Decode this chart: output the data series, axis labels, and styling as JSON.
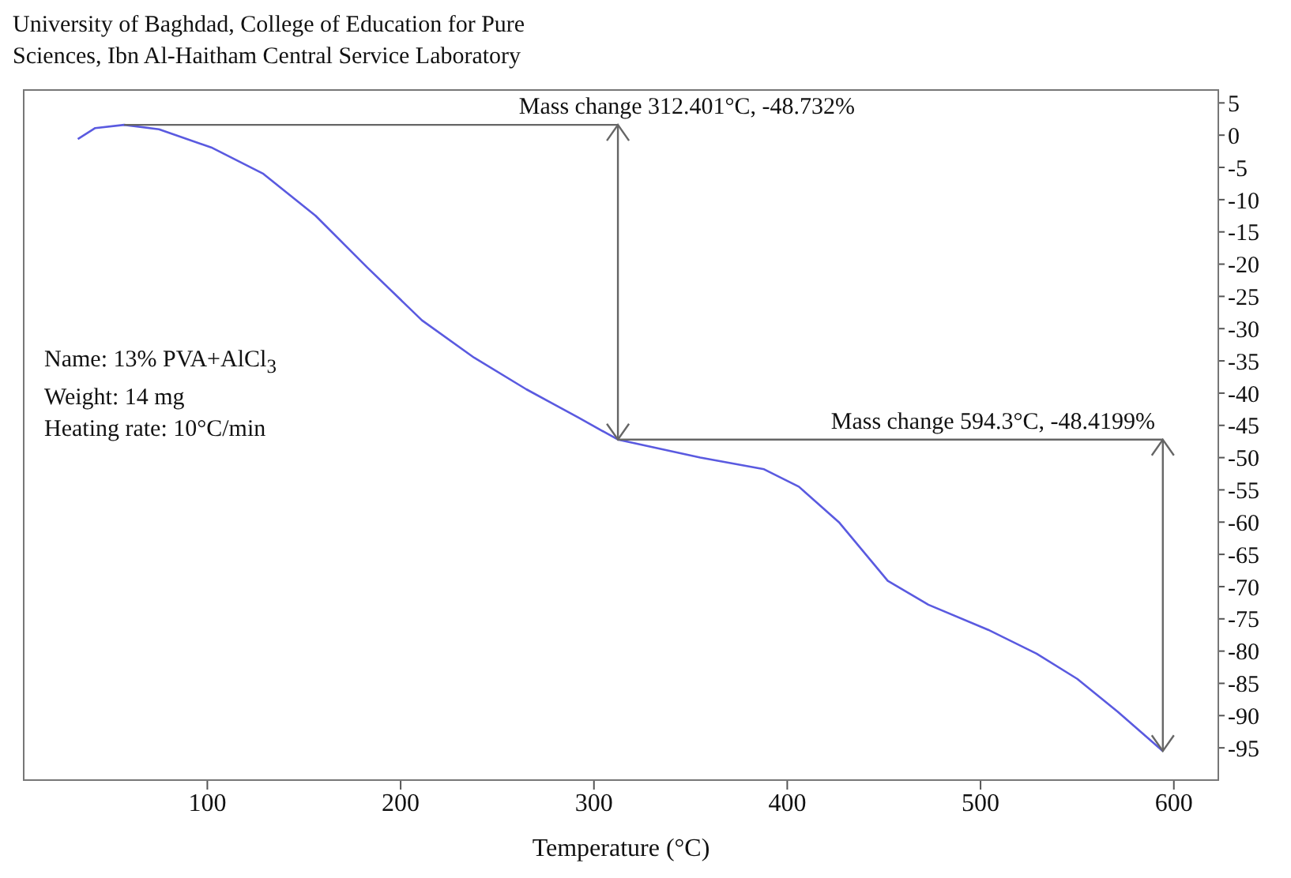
{
  "chart_data": {
    "type": "line",
    "title": "University of Baghdad, College of Education for Pure Sciences, Ibn Al-Haitham Central Service Laboratory",
    "xlabel": "Temperature (°C)",
    "x": [
      33,
      42,
      57,
      75,
      102,
      129,
      156,
      183,
      211,
      238,
      265,
      292,
      312.401,
      355,
      388,
      406,
      427,
      452,
      473,
      504,
      529,
      550,
      571,
      594.3
    ],
    "series": [
      {
        "color": "#5a5ae0",
        "values": [
          -0.6,
          1.1,
          1.6,
          0.9,
          -1.9,
          -6,
          -12.5,
          -20.6,
          -28.7,
          -34.5,
          -39.4,
          -43.8,
          -47.2,
          -50,
          -51.8,
          -54.5,
          -60.1,
          -69.1,
          -72.8,
          -76.7,
          -80.4,
          -84.3,
          -89.4,
          -95.5
        ]
      }
    ],
    "xlim": [
      5,
      623
    ],
    "xticks": [
      100,
      200,
      300,
      400,
      500,
      600
    ],
    "ylim": [
      -100,
      7
    ],
    "yticks": [
      5,
      0,
      -5,
      -10,
      -15,
      -20,
      -25,
      -30,
      -35,
      -40,
      -45,
      -50,
      -55,
      -60,
      -65,
      -70,
      -75,
      -80,
      -85,
      -90,
      -95
    ],
    "annotations": [
      {
        "text": "Mass change 312.401°C, -48.732%",
        "x": 312.401,
        "y": -47.2
      },
      {
        "text": "Mass change 594.3°C, -48.4199%",
        "x": 594.3,
        "y": -95.5
      },
      "Name: 13% PVA+AlCl$_{3}$",
      "Weight: 14 mg",
      "Heating rate: 10°C/min"
    ],
    "grid": false,
    "legend": false,
    "marker": "none",
    "line_style": "solid"
  }
}
